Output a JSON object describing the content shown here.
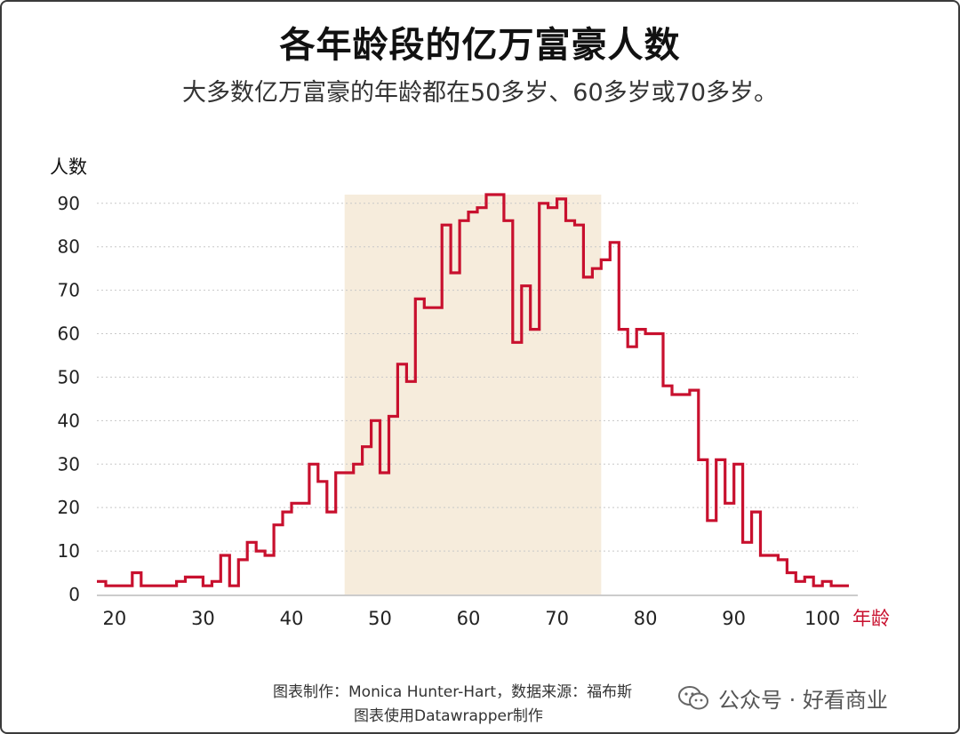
{
  "title": "各年龄段的亿万富豪人数",
  "subtitle": "大多数亿万富豪的年龄都在50多岁、60多岁或70多岁。",
  "credits": {
    "line1": "图表制作：Monica Hunter-Hart，数据来源：福布斯",
    "line2": "图表使用Datawrapper制作"
  },
  "watermark": {
    "text": "公众号 · 好看商业",
    "icon": "wechat-icon"
  },
  "colors": {
    "line": "#c8102e",
    "band": "#f6ecdc",
    "grid": "#c8c8c8",
    "xlabel_accent": "#c8102e"
  },
  "chart_data": {
    "type": "line",
    "step": true,
    "title": "各年龄段的亿万富豪人数",
    "subtitle": "大多数亿万富豪的年龄都在50多岁、60多岁或70多岁。",
    "xlabel": "年龄",
    "ylabel": "人数",
    "xlim": [
      18,
      104
    ],
    "ylim": [
      0,
      92
    ],
    "xticks": [
      20,
      30,
      40,
      50,
      60,
      70,
      80,
      90,
      100
    ],
    "yticks": [
      0,
      10,
      20,
      30,
      40,
      50,
      60,
      70,
      80,
      90
    ],
    "grid": true,
    "highlight_range": [
      46,
      75
    ],
    "x": [
      18,
      19,
      20,
      21,
      22,
      23,
      24,
      25,
      26,
      27,
      28,
      29,
      30,
      31,
      32,
      33,
      34,
      35,
      36,
      37,
      38,
      39,
      40,
      41,
      42,
      43,
      44,
      45,
      46,
      47,
      48,
      49,
      50,
      51,
      52,
      53,
      54,
      55,
      56,
      57,
      58,
      59,
      60,
      61,
      62,
      63,
      64,
      65,
      66,
      67,
      68,
      69,
      70,
      71,
      72,
      73,
      74,
      75,
      76,
      77,
      78,
      79,
      80,
      81,
      82,
      83,
      84,
      85,
      86,
      87,
      88,
      89,
      90,
      91,
      92,
      93,
      94,
      95,
      96,
      97,
      98,
      99,
      100,
      101,
      102
    ],
    "values": [
      3,
      2,
      2,
      2,
      5,
      2,
      2,
      2,
      2,
      3,
      4,
      4,
      2,
      3,
      9,
      2,
      8,
      12,
      10,
      9,
      16,
      19,
      21,
      21,
      30,
      26,
      19,
      28,
      28,
      30,
      34,
      40,
      28,
      41,
      53,
      49,
      68,
      66,
      66,
      85,
      74,
      86,
      88,
      89,
      92,
      92,
      86,
      58,
      71,
      61,
      90,
      89,
      91,
      86,
      85,
      73,
      75,
      77,
      81,
      61,
      57,
      61,
      60,
      60,
      48,
      46,
      46,
      47,
      31,
      17,
      31,
      21,
      30,
      12,
      19,
      9,
      9,
      8,
      5,
      3,
      4,
      2,
      3,
      2,
      2
    ]
  }
}
